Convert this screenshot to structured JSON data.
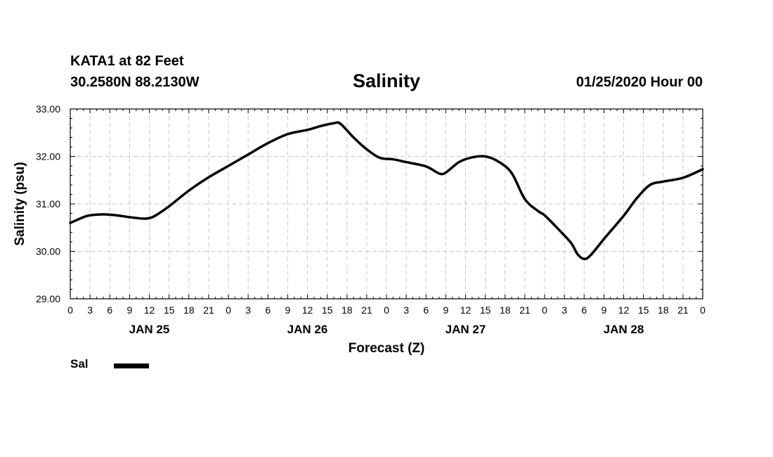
{
  "header": {
    "station": "KATA1 at 82 Feet",
    "coords": "30.2580N 88.2130W",
    "title": "Salinity",
    "runtime": "01/25/2020 Hour 00"
  },
  "legend": {
    "label": "Sal"
  },
  "colors": {
    "line": "#000000",
    "grid": "#c8c8c8",
    "axis": "#000000"
  },
  "chart_data": {
    "type": "line",
    "title": "Salinity",
    "xlabel": "Forecast (Z)",
    "ylabel": "Salinity (psu)",
    "ylim": [
      29.0,
      33.0
    ],
    "xlim_hours": [
      0,
      96
    ],
    "grid": true,
    "legend_position": "bottom-left",
    "yticks": [
      "29.00",
      "30.00",
      "31.00",
      "32.00",
      "33.00"
    ],
    "xticks": [
      "0",
      "3",
      "6",
      "9",
      "12",
      "15",
      "18",
      "21",
      "0",
      "3",
      "6",
      "9",
      "12",
      "15",
      "18",
      "21",
      "0",
      "3",
      "6",
      "9",
      "12",
      "15",
      "18",
      "21",
      "0",
      "3",
      "6",
      "9",
      "12",
      "15",
      "18",
      "21",
      "0"
    ],
    "day_labels": [
      {
        "label": "JAN 25",
        "hour": 12
      },
      {
        "label": "JAN 26",
        "hour": 36
      },
      {
        "label": "JAN 27",
        "hour": 60
      },
      {
        "label": "JAN 28",
        "hour": 84
      }
    ],
    "series": [
      {
        "name": "Sal",
        "points": [
          [
            0,
            30.6
          ],
          [
            2,
            30.72
          ],
          [
            3,
            30.76
          ],
          [
            5,
            30.78
          ],
          [
            7,
            30.76
          ],
          [
            9,
            30.72
          ],
          [
            11,
            30.69
          ],
          [
            12,
            30.7
          ],
          [
            13,
            30.76
          ],
          [
            15,
            30.95
          ],
          [
            18,
            31.28
          ],
          [
            21,
            31.56
          ],
          [
            24,
            31.8
          ],
          [
            27,
            32.04
          ],
          [
            30,
            32.28
          ],
          [
            33,
            32.47
          ],
          [
            36,
            32.56
          ],
          [
            38,
            32.64
          ],
          [
            40,
            32.7
          ],
          [
            41,
            32.69
          ],
          [
            43,
            32.4
          ],
          [
            45,
            32.15
          ],
          [
            47,
            31.97
          ],
          [
            49,
            31.94
          ],
          [
            51,
            31.88
          ],
          [
            54,
            31.79
          ],
          [
            56,
            31.64
          ],
          [
            57,
            31.66
          ],
          [
            59,
            31.88
          ],
          [
            61,
            31.98
          ],
          [
            63,
            32.0
          ],
          [
            65,
            31.89
          ],
          [
            67,
            31.65
          ],
          [
            69,
            31.1
          ],
          [
            71,
            30.85
          ],
          [
            72,
            30.76
          ],
          [
            74,
            30.48
          ],
          [
            76,
            30.18
          ],
          [
            77,
            29.94
          ],
          [
            78,
            29.84
          ],
          [
            79,
            29.92
          ],
          [
            81,
            30.26
          ],
          [
            84,
            30.75
          ],
          [
            86,
            31.12
          ],
          [
            88,
            31.4
          ],
          [
            90,
            31.47
          ],
          [
            93,
            31.55
          ],
          [
            96,
            31.73
          ]
        ]
      }
    ]
  }
}
